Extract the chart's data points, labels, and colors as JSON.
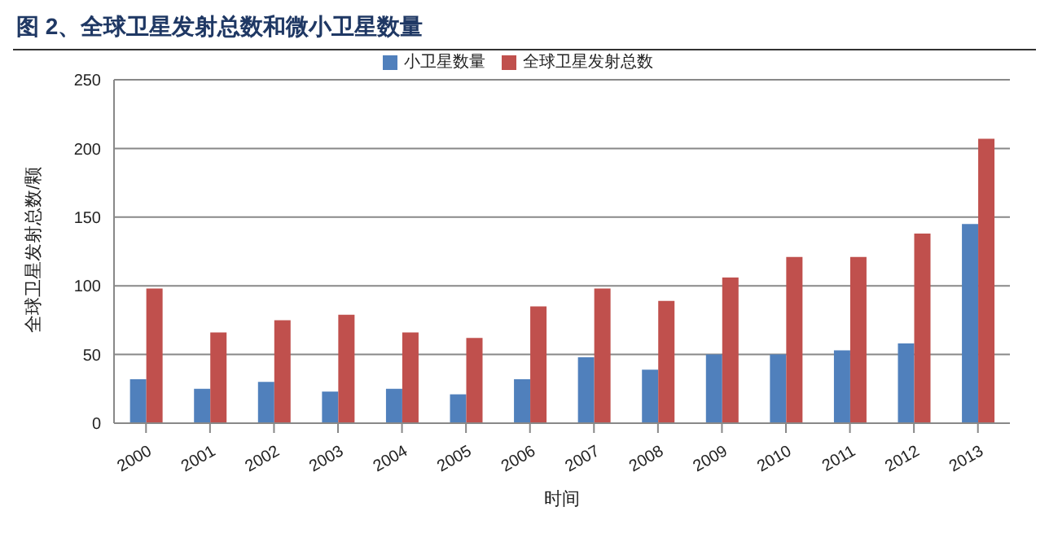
{
  "chart_data": {
    "type": "bar",
    "title": "图 2、全球卫星发射总数和微小卫星数量",
    "xlabel": "时间",
    "ylabel": "全球卫星发射总数/颗",
    "categories": [
      "2000",
      "2001",
      "2002",
      "2003",
      "2004",
      "2005",
      "2006",
      "2007",
      "2008",
      "2009",
      "2010",
      "2011",
      "2012",
      "2013"
    ],
    "series": [
      {
        "name": "小卫星数量",
        "color": "#5080bc",
        "values": [
          32,
          25,
          30,
          23,
          25,
          21,
          32,
          48,
          39,
          50,
          50,
          53,
          58,
          145
        ]
      },
      {
        "name": "全球卫星发射总数",
        "color": "#c0504d",
        "values": [
          98,
          66,
          75,
          79,
          66,
          62,
          85,
          98,
          89,
          106,
          121,
          121,
          138,
          207
        ]
      }
    ],
    "ylim": [
      0,
      250
    ],
    "yticks": [
      0,
      50,
      100,
      150,
      200,
      250
    ],
    "grid": "y",
    "legend": "top"
  }
}
